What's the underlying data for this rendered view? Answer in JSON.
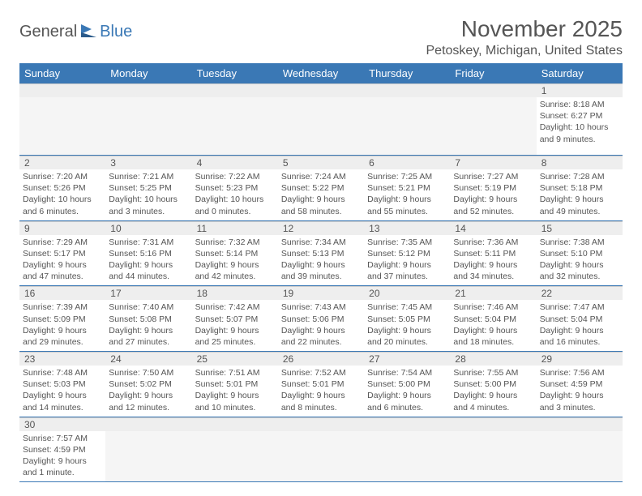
{
  "logo": {
    "general": "General",
    "blue": "Blue"
  },
  "title": "November 2025",
  "location": "Petoskey, Michigan, United States",
  "colors": {
    "header_bg": "#3a78b5",
    "header_text": "#ffffff",
    "body_text": "#555555",
    "daynum_bg": "#eeeeee",
    "week_border": "#3a78b5",
    "empty_bg": "#f5f5f5"
  },
  "day_names": [
    "Sunday",
    "Monday",
    "Tuesday",
    "Wednesday",
    "Thursday",
    "Friday",
    "Saturday"
  ],
  "weeks": [
    [
      null,
      null,
      null,
      null,
      null,
      null,
      {
        "n": "1",
        "sr": "Sunrise: 8:18 AM",
        "ss": "Sunset: 6:27 PM",
        "d1": "Daylight: 10 hours",
        "d2": "and 9 minutes."
      }
    ],
    [
      {
        "n": "2",
        "sr": "Sunrise: 7:20 AM",
        "ss": "Sunset: 5:26 PM",
        "d1": "Daylight: 10 hours",
        "d2": "and 6 minutes."
      },
      {
        "n": "3",
        "sr": "Sunrise: 7:21 AM",
        "ss": "Sunset: 5:25 PM",
        "d1": "Daylight: 10 hours",
        "d2": "and 3 minutes."
      },
      {
        "n": "4",
        "sr": "Sunrise: 7:22 AM",
        "ss": "Sunset: 5:23 PM",
        "d1": "Daylight: 10 hours",
        "d2": "and 0 minutes."
      },
      {
        "n": "5",
        "sr": "Sunrise: 7:24 AM",
        "ss": "Sunset: 5:22 PM",
        "d1": "Daylight: 9 hours",
        "d2": "and 58 minutes."
      },
      {
        "n": "6",
        "sr": "Sunrise: 7:25 AM",
        "ss": "Sunset: 5:21 PM",
        "d1": "Daylight: 9 hours",
        "d2": "and 55 minutes."
      },
      {
        "n": "7",
        "sr": "Sunrise: 7:27 AM",
        "ss": "Sunset: 5:19 PM",
        "d1": "Daylight: 9 hours",
        "d2": "and 52 minutes."
      },
      {
        "n": "8",
        "sr": "Sunrise: 7:28 AM",
        "ss": "Sunset: 5:18 PM",
        "d1": "Daylight: 9 hours",
        "d2": "and 49 minutes."
      }
    ],
    [
      {
        "n": "9",
        "sr": "Sunrise: 7:29 AM",
        "ss": "Sunset: 5:17 PM",
        "d1": "Daylight: 9 hours",
        "d2": "and 47 minutes."
      },
      {
        "n": "10",
        "sr": "Sunrise: 7:31 AM",
        "ss": "Sunset: 5:16 PM",
        "d1": "Daylight: 9 hours",
        "d2": "and 44 minutes."
      },
      {
        "n": "11",
        "sr": "Sunrise: 7:32 AM",
        "ss": "Sunset: 5:14 PM",
        "d1": "Daylight: 9 hours",
        "d2": "and 42 minutes."
      },
      {
        "n": "12",
        "sr": "Sunrise: 7:34 AM",
        "ss": "Sunset: 5:13 PM",
        "d1": "Daylight: 9 hours",
        "d2": "and 39 minutes."
      },
      {
        "n": "13",
        "sr": "Sunrise: 7:35 AM",
        "ss": "Sunset: 5:12 PM",
        "d1": "Daylight: 9 hours",
        "d2": "and 37 minutes."
      },
      {
        "n": "14",
        "sr": "Sunrise: 7:36 AM",
        "ss": "Sunset: 5:11 PM",
        "d1": "Daylight: 9 hours",
        "d2": "and 34 minutes."
      },
      {
        "n": "15",
        "sr": "Sunrise: 7:38 AM",
        "ss": "Sunset: 5:10 PM",
        "d1": "Daylight: 9 hours",
        "d2": "and 32 minutes."
      }
    ],
    [
      {
        "n": "16",
        "sr": "Sunrise: 7:39 AM",
        "ss": "Sunset: 5:09 PM",
        "d1": "Daylight: 9 hours",
        "d2": "and 29 minutes."
      },
      {
        "n": "17",
        "sr": "Sunrise: 7:40 AM",
        "ss": "Sunset: 5:08 PM",
        "d1": "Daylight: 9 hours",
        "d2": "and 27 minutes."
      },
      {
        "n": "18",
        "sr": "Sunrise: 7:42 AM",
        "ss": "Sunset: 5:07 PM",
        "d1": "Daylight: 9 hours",
        "d2": "and 25 minutes."
      },
      {
        "n": "19",
        "sr": "Sunrise: 7:43 AM",
        "ss": "Sunset: 5:06 PM",
        "d1": "Daylight: 9 hours",
        "d2": "and 22 minutes."
      },
      {
        "n": "20",
        "sr": "Sunrise: 7:45 AM",
        "ss": "Sunset: 5:05 PM",
        "d1": "Daylight: 9 hours",
        "d2": "and 20 minutes."
      },
      {
        "n": "21",
        "sr": "Sunrise: 7:46 AM",
        "ss": "Sunset: 5:04 PM",
        "d1": "Daylight: 9 hours",
        "d2": "and 18 minutes."
      },
      {
        "n": "22",
        "sr": "Sunrise: 7:47 AM",
        "ss": "Sunset: 5:04 PM",
        "d1": "Daylight: 9 hours",
        "d2": "and 16 minutes."
      }
    ],
    [
      {
        "n": "23",
        "sr": "Sunrise: 7:48 AM",
        "ss": "Sunset: 5:03 PM",
        "d1": "Daylight: 9 hours",
        "d2": "and 14 minutes."
      },
      {
        "n": "24",
        "sr": "Sunrise: 7:50 AM",
        "ss": "Sunset: 5:02 PM",
        "d1": "Daylight: 9 hours",
        "d2": "and 12 minutes."
      },
      {
        "n": "25",
        "sr": "Sunrise: 7:51 AM",
        "ss": "Sunset: 5:01 PM",
        "d1": "Daylight: 9 hours",
        "d2": "and 10 minutes."
      },
      {
        "n": "26",
        "sr": "Sunrise: 7:52 AM",
        "ss": "Sunset: 5:01 PM",
        "d1": "Daylight: 9 hours",
        "d2": "and 8 minutes."
      },
      {
        "n": "27",
        "sr": "Sunrise: 7:54 AM",
        "ss": "Sunset: 5:00 PM",
        "d1": "Daylight: 9 hours",
        "d2": "and 6 minutes."
      },
      {
        "n": "28",
        "sr": "Sunrise: 7:55 AM",
        "ss": "Sunset: 5:00 PM",
        "d1": "Daylight: 9 hours",
        "d2": "and 4 minutes."
      },
      {
        "n": "29",
        "sr": "Sunrise: 7:56 AM",
        "ss": "Sunset: 4:59 PM",
        "d1": "Daylight: 9 hours",
        "d2": "and 3 minutes."
      }
    ],
    [
      {
        "n": "30",
        "sr": "Sunrise: 7:57 AM",
        "ss": "Sunset: 4:59 PM",
        "d1": "Daylight: 9 hours",
        "d2": "and 1 minute."
      },
      null,
      null,
      null,
      null,
      null,
      null
    ]
  ]
}
